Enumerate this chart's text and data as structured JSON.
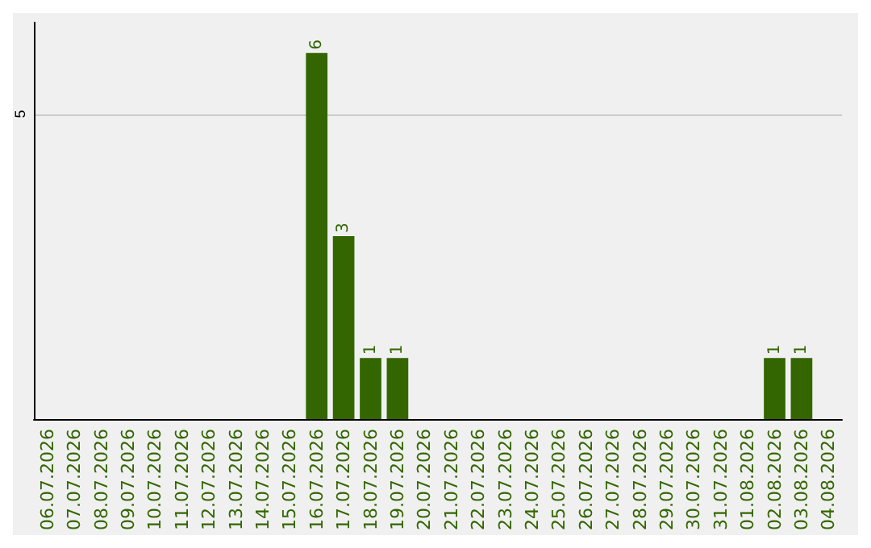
{
  "chart_data": {
    "type": "bar",
    "categories": [
      "06.07.2026",
      "07.07.2026",
      "08.07.2026",
      "09.07.2026",
      "10.07.2026",
      "11.07.2026",
      "12.07.2026",
      "13.07.2026",
      "14.07.2026",
      "15.07.2026",
      "16.07.2026",
      "17.07.2026",
      "18.07.2026",
      "19.07.2026",
      "20.07.2026",
      "21.07.2026",
      "22.07.2026",
      "23.07.2026",
      "24.07.2026",
      "25.07.2026",
      "26.07.2026",
      "27.07.2026",
      "28.07.2026",
      "29.07.2026",
      "30.07.2026",
      "31.07.2026",
      "01.08.2026",
      "02.08.2026",
      "03.08.2026",
      "04.08.2026"
    ],
    "values": [
      null,
      null,
      null,
      null,
      null,
      null,
      null,
      null,
      null,
      null,
      6,
      3,
      1,
      1,
      null,
      null,
      null,
      null,
      null,
      null,
      null,
      null,
      null,
      null,
      null,
      null,
      null,
      1,
      1,
      null
    ],
    "color": "#336600",
    "ylim": [
      0,
      6.5
    ],
    "yticks": [
      5
    ],
    "grid": "y",
    "data_labels": true
  }
}
